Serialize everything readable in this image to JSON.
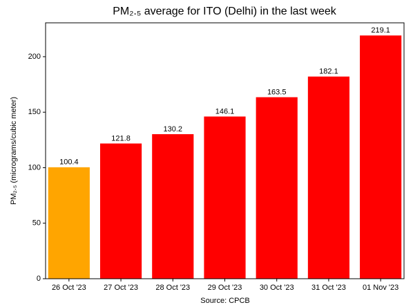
{
  "chart_data": {
    "type": "bar",
    "title": "PM₂.₅ average for ITO (Delhi) in the last week",
    "y_label": "PM₂.₅ (micrograms/cubic meter)",
    "x_label": "Source: CPCB",
    "categories": [
      "26 Oct '23",
      "27 Oct '23",
      "28 Oct '23",
      "29 Oct '23",
      "30 Oct '23",
      "31 Oct '23",
      "01 Nov '23"
    ],
    "values": [
      100.4,
      121.8,
      130.2,
      146.1,
      163.5,
      182.1,
      219.1
    ],
    "colors": [
      "#ffa500",
      "#ff0000",
      "#ff0000",
      "#ff0000",
      "#ff0000",
      "#ff0000",
      "#ff0000"
    ],
    "ylim": [
      0,
      230.5
    ],
    "yticks": [
      0,
      50,
      100,
      150,
      200
    ],
    "grid": false
  }
}
